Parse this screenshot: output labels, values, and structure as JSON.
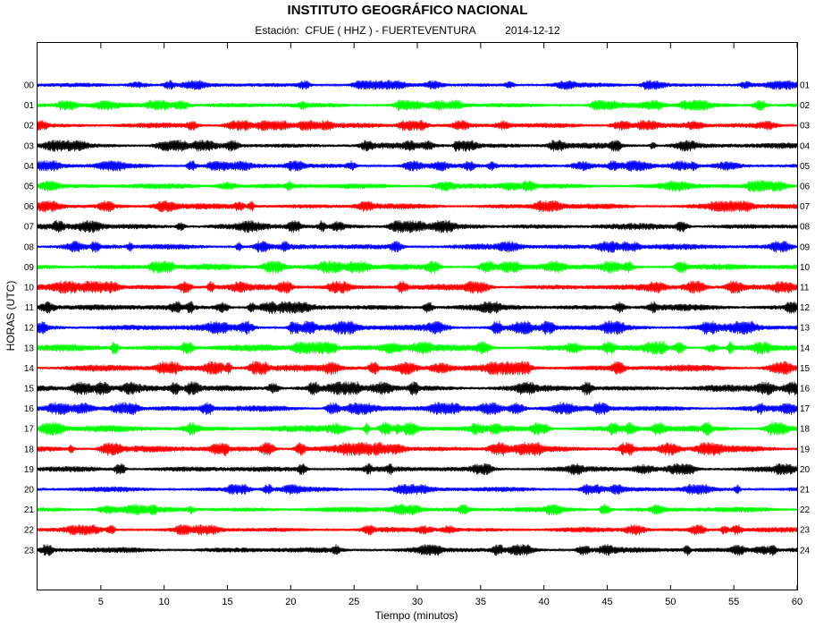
{
  "title": "INSTITUTO GEOGRÁFICO NACIONAL",
  "subtitle": {
    "station_label": "Estación:",
    "station": "CFUE ( HHZ ) - FUERTEVENTURA",
    "date": "2014-12-12"
  },
  "chart_data": {
    "type": "line",
    "title": "INSTITUTO GEOGRÁFICO NACIONAL",
    "xlabel": "Tiempo (minutos)",
    "ylabel": "HORAS (UTC)",
    "xlim": [
      0,
      60
    ],
    "x_ticks": [
      5,
      10,
      15,
      20,
      25,
      30,
      35,
      40,
      45,
      50,
      55,
      60
    ],
    "left_hour_labels": [
      "00",
      "01",
      "02",
      "03",
      "04",
      "05",
      "06",
      "07",
      "08",
      "09",
      "10",
      "11",
      "12",
      "13",
      "14",
      "15",
      "16",
      "17",
      "18",
      "19",
      "20",
      "21",
      "22",
      "23"
    ],
    "right_hour_labels": [
      "01",
      "02",
      "03",
      "04",
      "05",
      "06",
      "07",
      "08",
      "09",
      "10",
      "11",
      "12",
      "13",
      "14",
      "15",
      "16",
      "17",
      "18",
      "19",
      "20",
      "21",
      "22",
      "23",
      "24"
    ],
    "trace_colors": [
      "#0000ff",
      "#00ff00",
      "#ff0000",
      "#000000"
    ],
    "series": [
      {
        "hour": "00",
        "color": "#0000ff",
        "amplitude": 0.5
      },
      {
        "hour": "01",
        "color": "#00ff00",
        "amplitude": 0.55
      },
      {
        "hour": "02",
        "color": "#ff0000",
        "amplitude": 0.55
      },
      {
        "hour": "03",
        "color": "#000000",
        "amplitude": 0.6
      },
      {
        "hour": "04",
        "color": "#0000ff",
        "amplitude": 0.55
      },
      {
        "hour": "05",
        "color": "#00ff00",
        "amplitude": 0.6
      },
      {
        "hour": "06",
        "color": "#ff0000",
        "amplitude": 0.6
      },
      {
        "hour": "07",
        "color": "#000000",
        "amplitude": 0.65
      },
      {
        "hour": "08",
        "color": "#0000ff",
        "amplitude": 0.6
      },
      {
        "hour": "09",
        "color": "#00ff00",
        "amplitude": 0.65
      },
      {
        "hour": "10",
        "color": "#ff0000",
        "amplitude": 0.65
      },
      {
        "hour": "11",
        "color": "#000000",
        "amplitude": 0.65
      },
      {
        "hour": "12",
        "color": "#0000ff",
        "amplitude": 0.7
      },
      {
        "hour": "13",
        "color": "#00ff00",
        "amplitude": 0.7
      },
      {
        "hour": "14",
        "color": "#ff0000",
        "amplitude": 0.7
      },
      {
        "hour": "15",
        "color": "#000000",
        "amplitude": 0.7
      },
      {
        "hour": "16",
        "color": "#0000ff",
        "amplitude": 0.65
      },
      {
        "hour": "17",
        "color": "#00ff00",
        "amplitude": 0.7
      },
      {
        "hour": "18",
        "color": "#ff0000",
        "amplitude": 0.7
      },
      {
        "hour": "19",
        "color": "#000000",
        "amplitude": 0.6
      },
      {
        "hour": "20",
        "color": "#0000ff",
        "amplitude": 0.55
      },
      {
        "hour": "21",
        "color": "#00ff00",
        "amplitude": 0.6
      },
      {
        "hour": "22",
        "color": "#ff0000",
        "amplitude": 0.55
      },
      {
        "hour": "23",
        "color": "#000000",
        "amplitude": 0.6
      }
    ],
    "grid": false,
    "legend": "none"
  }
}
